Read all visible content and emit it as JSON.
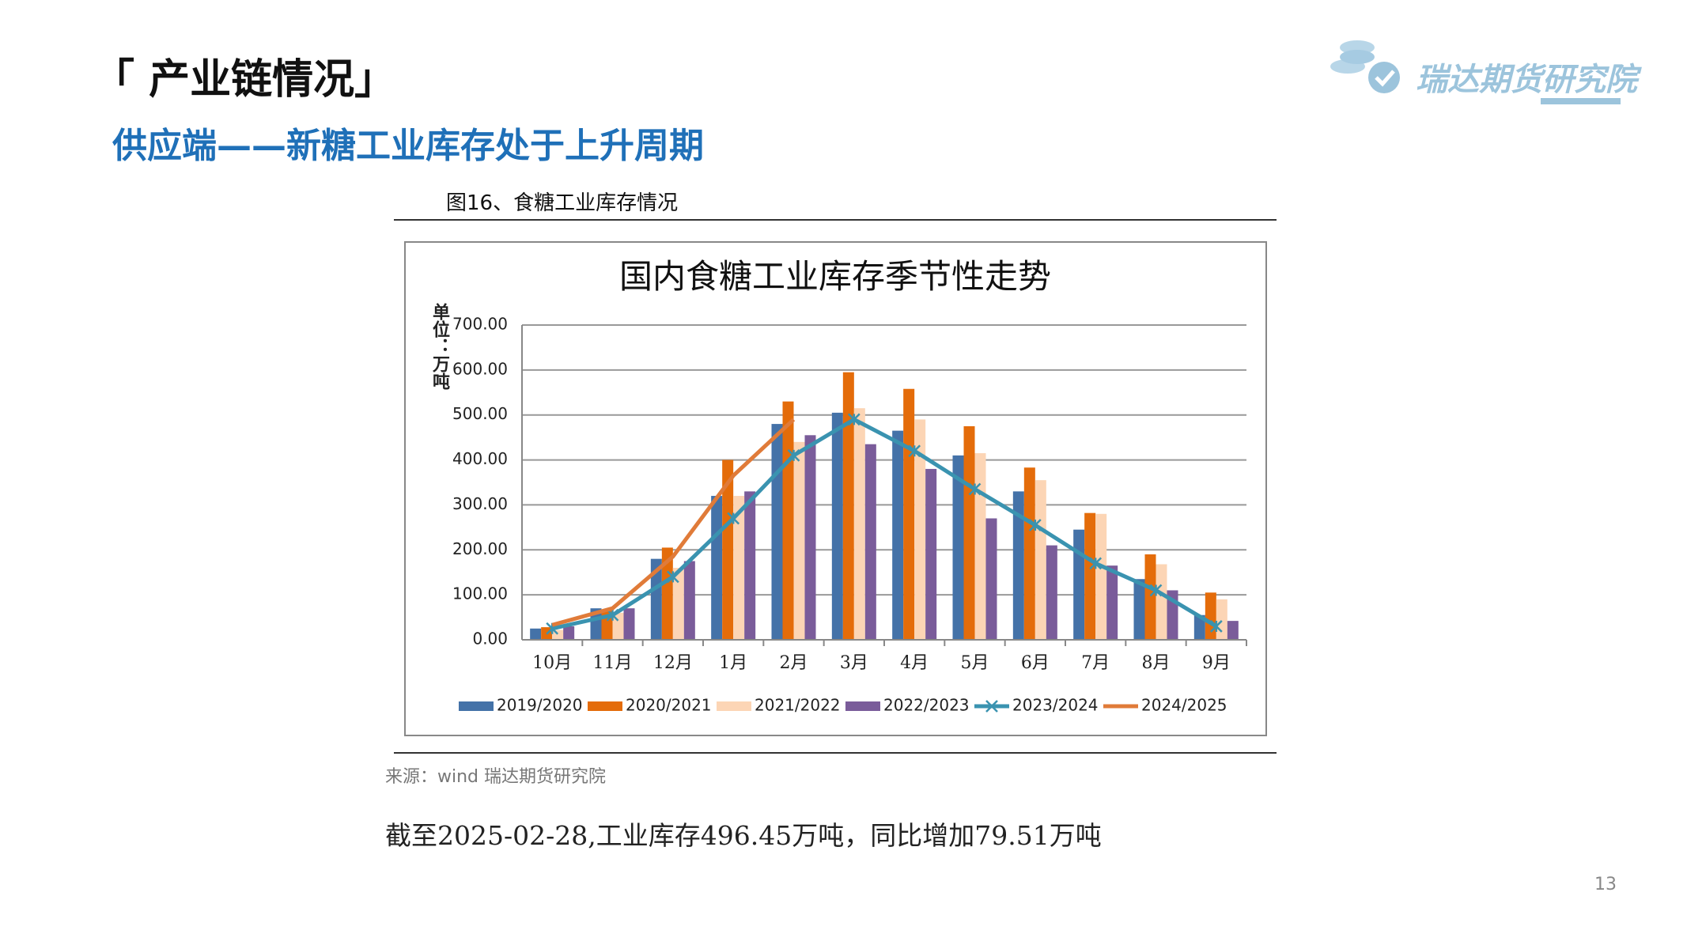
{
  "header": {
    "title": "「 产业链情况」",
    "subtitle": "供应端——新糖工业库存处于上升周期",
    "logo": "瑞达期货研究院"
  },
  "figure": {
    "caption": "图16、食糖工业库存情况",
    "source": "来源：wind   瑞达期货研究院"
  },
  "note": "截至2025-02-28,工业库存496.45万吨，同比增加79.51万吨",
  "page_number": "13",
  "chart_data": {
    "type": "bar",
    "title": "国内食糖工业库存季节性走势",
    "y_label": "单位：万吨",
    "categories": [
      "10月",
      "11月",
      "12月",
      "1月",
      "2月",
      "3月",
      "4月",
      "5月",
      "6月",
      "7月",
      "8月",
      "9月"
    ],
    "series": [
      {
        "name": "2019/2020",
        "type": "bar",
        "color": "#4472a8",
        "values": [
          25,
          70,
          180,
          320,
          480,
          505,
          465,
          410,
          330,
          245,
          135,
          55
        ]
      },
      {
        "name": "2020/2021",
        "type": "bar",
        "color": "#e46c0a",
        "values": [
          28,
          65,
          205,
          400,
          530,
          595,
          558,
          475,
          383,
          282,
          190,
          105
        ]
      },
      {
        "name": "2021/2022",
        "type": "bar",
        "color": "#fcd5b5",
        "values": [
          22,
          60,
          160,
          320,
          440,
          515,
          490,
          415,
          355,
          280,
          168,
          90
        ]
      },
      {
        "name": "2022/2023",
        "type": "bar",
        "color": "#7a5c9a",
        "values": [
          30,
          70,
          175,
          330,
          455,
          435,
          380,
          270,
          210,
          165,
          110,
          42
        ]
      },
      {
        "name": "2023/2024",
        "type": "line",
        "marker": "x",
        "color": "#3a93b0",
        "values": [
          25,
          55,
          140,
          270,
          410,
          490,
          420,
          335,
          255,
          170,
          110,
          30
        ]
      },
      {
        "name": "2024/2025",
        "type": "line",
        "color": "#e07b39",
        "values": [
          33,
          70,
          185,
          365,
          490,
          null,
          null,
          null,
          null,
          null,
          null,
          null
        ]
      }
    ],
    "ylim": [
      0,
      700
    ],
    "yticks": [
      {
        "value": 0,
        "label": "0.00"
      },
      {
        "value": 100,
        "label": "100.00"
      },
      {
        "value": 200,
        "label": "200.00"
      },
      {
        "value": 300,
        "label": "300.00"
      },
      {
        "value": 400,
        "label": "400.00"
      },
      {
        "value": 500,
        "label": "500.00"
      },
      {
        "value": 600,
        "label": "600.00"
      },
      {
        "value": 700,
        "label": "700.00"
      }
    ],
    "grid": true
  }
}
